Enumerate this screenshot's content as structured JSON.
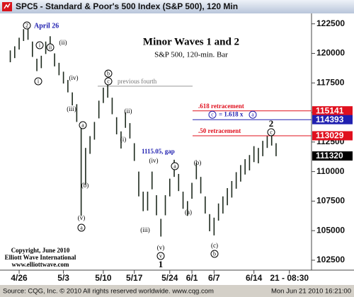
{
  "window_title": "SPC5 - Standard & Poor's 500 Index (S&P 500), 120 Min",
  "footer": {
    "source": "Source: CQG, Inc. © 2010 All rights reserved worldwide. www.cqg.com",
    "timestamp": "Mon Jun 21 2010 16:21:00"
  },
  "chart_data": {
    "type": "hilo",
    "title": "Minor Waves 1 and 2",
    "subtitle": "S&P 500, 120-min. Bar",
    "color": "#1e2a1e",
    "categories": [
      null,
      null,
      "4/26",
      null,
      null,
      null,
      null,
      null,
      null,
      null,
      null,
      null,
      "5/3",
      null,
      null,
      null,
      null,
      null,
      null,
      null,
      null,
      "5/10",
      null,
      null,
      null,
      null,
      null,
      null,
      "5/17",
      null,
      null,
      null,
      null,
      null,
      null,
      null,
      "5/24",
      null,
      null,
      null,
      null,
      "6/1",
      null,
      null,
      null,
      null,
      "6/7",
      null,
      null,
      null,
      null,
      null,
      null,
      null,
      null,
      "6/14",
      null,
      null,
      null,
      null,
      null,
      null,
      null,
      "21 - 08:30"
    ],
    "high": [
      120250,
      120600,
      121325,
      122050,
      122150,
      121000,
      119550,
      119800,
      121000,
      121450,
      120000,
      119200,
      118450,
      117750,
      116700,
      115700,
      114200,
      112000,
      113000,
      114200,
      116000,
      117100,
      117500,
      116250,
      114600,
      113400,
      115000,
      114100,
      112400,
      110000,
      108300,
      108300,
      110000,
      108000,
      106000,
      108000,
      109400,
      111000,
      109800,
      108300,
      107500,
      109050,
      110750,
      109550,
      107900,
      106400,
      106100,
      107300,
      107900,
      108600,
      109200,
      109950,
      110550,
      111050,
      111400,
      112150,
      112000,
      112600,
      113000,
      113050,
      112400,
      null,
      null,
      null
    ],
    "low": [
      119250,
      119600,
      120325,
      121050,
      121150,
      119700,
      118500,
      118750,
      119950,
      120450,
      118900,
      118150,
      117450,
      116700,
      115600,
      114200,
      106250,
      108900,
      111500,
      112700,
      114500,
      115800,
      116250,
      114850,
      113150,
      111950,
      113700,
      112800,
      110900,
      107900,
      106650,
      106700,
      108500,
      106300,
      104500,
      106300,
      107900,
      109550,
      108350,
      106850,
      106250,
      107700,
      109350,
      108150,
      106450,
      104950,
      104600,
      105850,
      106450,
      107150,
      107800,
      108550,
      109150,
      109750,
      110100,
      110800,
      110700,
      111300,
      112000,
      112200,
      111300,
      null,
      null,
      null
    ],
    "ylim": [
      101900,
      123200
    ],
    "yticks": [
      102500,
      105000,
      107500,
      110000,
      112500,
      115000,
      117500,
      120000,
      122500
    ],
    "levels": [
      {
        "value": 115141,
        "color": "#e0101e",
        "text": ".618 retracement"
      },
      {
        "value": 114393,
        "color": "#2020b0",
        "text": [
          "c",
          "= 1.618 x",
          "a"
        ]
      },
      {
        "value": 113029,
        "color": "#e0101e",
        "text": ".50 retracement"
      },
      {
        "value": 111320,
        "color": "#000000"
      }
    ],
    "reference_line": {
      "value": 117225,
      "color": "#999999",
      "text": "previous fourth"
    },
    "annotations": {
      "date_note": "April 26",
      "gap": "1115.05, gap",
      "copyright": [
        "Copyright, June 2010",
        "Elliott Wave International",
        "www.elliottwave.com"
      ]
    },
    "wave_labels": [
      {
        "text": "2",
        "style": "circled"
      },
      {
        "text": "i",
        "style": "circled"
      },
      {
        "text": "ii",
        "style": "circled"
      },
      {
        "text": "(ii)",
        "style": "plain"
      },
      {
        "text": "i",
        "style": "circled"
      },
      {
        "text": "(iv)",
        "style": "plain"
      },
      {
        "text": "(iii)",
        "style": "plain"
      },
      {
        "text": "a",
        "style": "circled"
      },
      {
        "text": "(b)",
        "style": "plain"
      },
      {
        "text": "(v)",
        "style": "plain"
      },
      {
        "text": "a",
        "style": "circled"
      },
      {
        "text": "b",
        "style": "circled"
      },
      {
        "text": "c",
        "style": "circled"
      },
      {
        "text": "(i)",
        "style": "plain"
      },
      {
        "text": "(ii)",
        "style": "plain"
      },
      {
        "text": "(iv)",
        "style": "plain"
      },
      {
        "text": "(iii)",
        "style": "plain"
      },
      {
        "text": "(v)",
        "style": "plain"
      },
      {
        "text": "v",
        "style": "circled"
      },
      {
        "text": "1",
        "style": "bold"
      },
      {
        "text": "a",
        "style": "circled"
      },
      {
        "text": "(b)",
        "style": "plain"
      },
      {
        "text": "(a)",
        "style": "plain"
      },
      {
        "text": "(c)",
        "style": "plain"
      },
      {
        "text": "b",
        "style": "circled"
      },
      {
        "text": "2",
        "style": "bold"
      },
      {
        "text": "c",
        "style": "circled"
      }
    ]
  }
}
